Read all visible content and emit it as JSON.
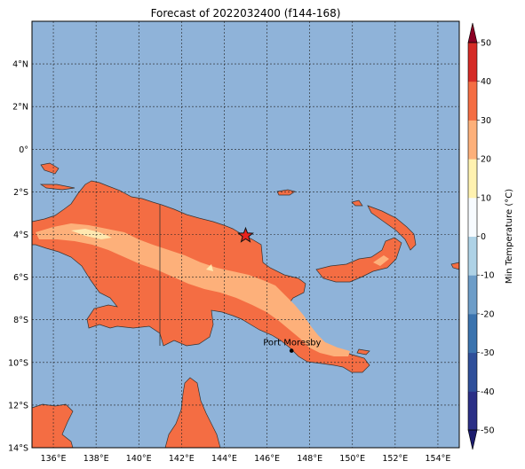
{
  "title": "Forecast of 2022032400 (f144-168)",
  "map": {
    "lon_range": [
      135,
      155
    ],
    "lat_range": [
      -14,
      6
    ],
    "lon_ticks": [
      "136°E",
      "138°E",
      "140°E",
      "142°E",
      "144°E",
      "146°E",
      "148°E",
      "150°E",
      "152°E",
      "154°E"
    ],
    "lat_ticks": [
      "4°N",
      "2°N",
      "0°",
      "2°S",
      "4°S",
      "6°S",
      "8°S",
      "10°S",
      "12°S",
      "14°S"
    ],
    "ocean_color": "#8fb3d9",
    "gridlines": "dotted",
    "marker": {
      "type": "star-icon",
      "lon": 145.0,
      "lat": -4.05,
      "color": "#e8231e"
    },
    "city": {
      "name": "Port Moresby",
      "lon": 147.15,
      "lat": -9.45
    }
  },
  "colorbar": {
    "label": "Min Temperature (°C)",
    "levels": [
      "-50",
      "-40",
      "-30",
      "-20",
      "-10",
      "0",
      "10",
      "20",
      "30",
      "40",
      "50"
    ],
    "colors": [
      "#2b2f86",
      "#2f4f9a",
      "#3b73ae",
      "#6d9dc8",
      "#aed2e6",
      "#f7fbff",
      "#fff2b0",
      "#fdb07a",
      "#f46d43",
      "#d52b26",
      "#a50026"
    ],
    "min_extend_color": "#1c1c6e",
    "max_extend_color": "#8b0024"
  }
}
